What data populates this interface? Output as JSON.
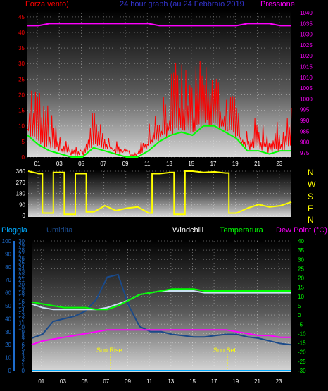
{
  "header": {
    "wind_label": "Forza vento)",
    "title": "24 hour graph (au   24 Febbraio 2019",
    "pressure_label": "Pressione"
  },
  "panel2": {
    "directions": [
      "N",
      "W",
      "S",
      "E",
      "N"
    ]
  },
  "legend3": {
    "rain": "Pioggia",
    "humidity": "Umidita",
    "windchill": "Windchill",
    "temperature": "Temperatura",
    "dewpoint": "Dew Point (°C)"
  },
  "annotations": {
    "sunrise": "Sun Rise",
    "sunset": "Sun Set"
  },
  "colors": {
    "wind_gust": "#ff0000",
    "wind_avg": "#00ff00",
    "pressure": "#ff00ff",
    "direction": "#ffff00",
    "humidity": "#1a4a8a",
    "windchill": "#c8e0f0",
    "temperature": "#00ff00",
    "dewpoint": "#ff00ff",
    "rain": "#00aaff"
  },
  "chart_data": [
    {
      "type": "line",
      "x_ticks": [
        "01",
        "03",
        "05",
        "07",
        "09",
        "11",
        "13",
        "15",
        "17",
        "19",
        "21",
        "23"
      ],
      "x": [
        0,
        1,
        2,
        3,
        4,
        5,
        6,
        7,
        8,
        9,
        10,
        11,
        12,
        13,
        14,
        15,
        16,
        17,
        18,
        19,
        20,
        21,
        22,
        23,
        24
      ],
      "y_left_ticks": [
        0,
        5,
        10,
        15,
        20,
        25,
        30,
        35,
        40,
        45
      ],
      "y_right_ticks": [
        975,
        980,
        985,
        990,
        995,
        1000,
        1005,
        1010,
        1015,
        1020,
        1025,
        1030,
        1035,
        1040
      ],
      "ylim_left": [
        0,
        47
      ],
      "ylim_right": [
        973,
        1041
      ],
      "series": [
        {
          "name": "Forza vento",
          "axis": "left",
          "values": [
            20,
            18,
            12,
            5,
            3,
            2,
            12,
            6,
            4,
            2,
            1,
            10,
            16,
            21,
            24,
            20,
            26,
            23,
            18,
            14,
            8,
            10,
            7,
            9,
            12
          ]
        },
        {
          "name": "Pressione",
          "axis": "right",
          "values": [
            1034,
            1034,
            1035,
            1035,
            1035,
            1035,
            1035,
            1035,
            1035,
            1035,
            1035,
            1035,
            1034,
            1034,
            1034,
            1034,
            1034,
            1034,
            1034,
            1034,
            1035,
            1035,
            1035,
            1034,
            1034
          ]
        },
        {
          "values": [
            7,
            4,
            2,
            1,
            0,
            0,
            3,
            2,
            1,
            0,
            0,
            2,
            5,
            7,
            8,
            7,
            10,
            10,
            8,
            6,
            2,
            2,
            1,
            2,
            2
          ]
        }
      ]
    },
    {
      "type": "line",
      "x": [
        0,
        1,
        2,
        3,
        4,
        5,
        6,
        7,
        8,
        9,
        10,
        11,
        12,
        13,
        14,
        15,
        16,
        17,
        18,
        19,
        20,
        21,
        22,
        23,
        24
      ],
      "y_ticks": [
        0,
        90,
        180,
        270,
        360
      ],
      "ylim": [
        0,
        360
      ],
      "series": [
        {
          "name": "Wind direction",
          "values": [
            360,
            340,
            20,
            350,
            10,
            340,
            30,
            80,
            40,
            60,
            70,
            20,
            340,
            350,
            10,
            360,
            350,
            355,
            345,
            20,
            60,
            90,
            70,
            80,
            110
          ]
        }
      ]
    },
    {
      "type": "line",
      "x_ticks": [
        "01",
        "03",
        "05",
        "07",
        "09",
        "11",
        "13",
        "15",
        "17",
        "19",
        "21",
        "23"
      ],
      "x": [
        0,
        1,
        2,
        3,
        4,
        5,
        6,
        7,
        8,
        9,
        10,
        11,
        12,
        13,
        14,
        15,
        16,
        17,
        18,
        19,
        20,
        21,
        22,
        23,
        24
      ],
      "y_left_ticks": [
        0,
        1,
        2,
        3,
        4,
        5,
        6,
        7,
        8,
        9,
        10,
        11,
        12,
        13,
        14,
        15,
        16,
        17,
        18,
        19,
        20,
        21,
        22,
        23,
        24,
        25,
        26,
        27,
        28,
        29,
        30
      ],
      "y_humidity_ticks": [
        0,
        10,
        20,
        30,
        40,
        50,
        60,
        70,
        80,
        90,
        100
      ],
      "y_right_ticks": [
        -30,
        -25,
        -20,
        -15,
        -10,
        -5,
        0,
        5,
        10,
        15,
        20,
        25,
        30,
        35,
        40
      ],
      "ylim_temp": [
        -30,
        40
      ],
      "series": [
        {
          "name": "Umidita",
          "axis": "humidity",
          "values": [
            25,
            28,
            38,
            40,
            42,
            46,
            55,
            72,
            74,
            50,
            34,
            30,
            30,
            28,
            27,
            26,
            26,
            27,
            28,
            28,
            26,
            25,
            23,
            21,
            20
          ]
        },
        {
          "name": "Windchill",
          "axis": "temp",
          "values": [
            6,
            4,
            3,
            3,
            3,
            3,
            3,
            4,
            6,
            8,
            11,
            12,
            13,
            13,
            13,
            13,
            12,
            12,
            12,
            12,
            12,
            12,
            12,
            12,
            12
          ]
        },
        {
          "name": "Temperatura",
          "axis": "temp",
          "values": [
            7,
            6,
            5,
            4,
            4,
            4,
            3,
            3,
            5,
            8,
            11,
            12,
            13,
            14,
            14,
            14,
            13,
            13,
            13,
            13,
            13,
            13,
            13,
            13,
            13
          ]
        },
        {
          "name": "Dew Point",
          "axis": "temp",
          "values": [
            -16,
            -14,
            -13,
            -12,
            -11,
            -10,
            -9,
            -8,
            -8,
            -8,
            -8,
            -8,
            -8,
            -8,
            -8,
            -8,
            -8,
            -8,
            -8,
            -9,
            -10,
            -11,
            -11,
            -12,
            -12
          ]
        },
        {
          "name": "Pioggia",
          "axis": "rain",
          "values": [
            0,
            0,
            0,
            0,
            0,
            0,
            0,
            0,
            0,
            0,
            0,
            0,
            0,
            0,
            0,
            0,
            0,
            0,
            0,
            0,
            0,
            0,
            0,
            0,
            0
          ]
        }
      ]
    }
  ]
}
